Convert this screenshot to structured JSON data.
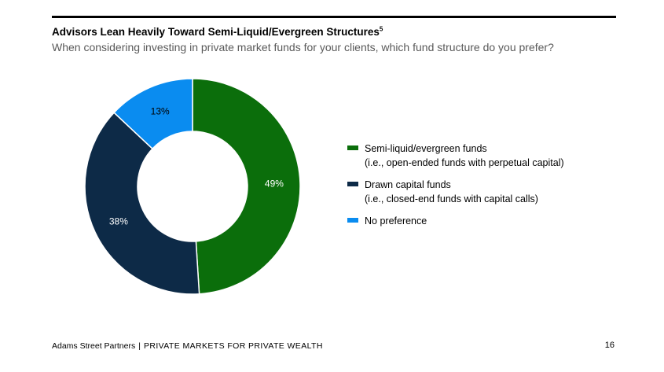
{
  "header": {
    "title": "Advisors Lean Heavily Toward Semi-Liquid/Evergreen Structures",
    "title_footnote": "5",
    "subtitle": "When considering investing in private market funds for your clients, which fund structure do you prefer?"
  },
  "chart_data": {
    "type": "pie",
    "donut": true,
    "categories": [
      "Semi-liquid/evergreen funds",
      "Drawn capital funds",
      "No preference"
    ],
    "values": [
      49,
      38,
      13
    ],
    "value_labels": [
      "49%",
      "38%",
      "13%"
    ],
    "colors": [
      "#0b6e0b",
      "#0d2a47",
      "#0a8cf0"
    ],
    "label_colors": [
      "#ffffff",
      "#ffffff",
      "#000000"
    ],
    "legend": [
      {
        "label": "Semi-liquid/evergreen funds",
        "sub": "(i.e., open-ended funds with perpetual capital)",
        "color": "#0b6e0b"
      },
      {
        "label": "Drawn capital funds",
        "sub": "(i.e., closed-end funds with capital calls)",
        "color": "#0d2a47"
      },
      {
        "label": "No preference",
        "sub": "",
        "color": "#0a8cf0"
      }
    ],
    "legend_position": "right"
  },
  "footer": {
    "brand": "Adams Street Partners",
    "separator": "|",
    "tagline": "PRIVATE MARKETS FOR PRIVATE WEALTH",
    "page_number": "16"
  }
}
